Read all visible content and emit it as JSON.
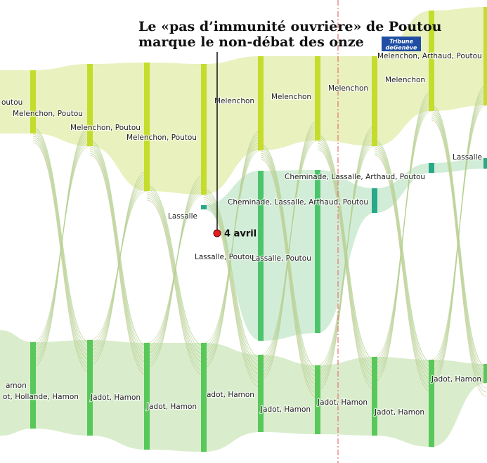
{
  "header": {
    "title_lines": [
      "Le «pas d’immunité ouvrière» de Poutou",
      "marque le non-débat des onze"
    ],
    "logo_lines": [
      "Tribune",
      "deGenève"
    ]
  },
  "annotation": {
    "label": "4 avril"
  },
  "labels": [
    "outou",
    "Melenchon, Poutou",
    "Melenchon, Poutou",
    "Melenchon, Poutou",
    "Melenchon",
    "Melenchon",
    "Melenchon",
    "Melenchon",
    "Melenchon, Arthaud, Poutou",
    "Lassalle",
    "Cheminade, Lassalle, Arthaud, Poutou",
    "Cheminade, Lassalle, Arthaud, Poutou",
    "Lassalle",
    "Lassalle, Poutou",
    "Lassalle, Poutou",
    "amon",
    "ot, Hollande, Hamon",
    "Jadot, Hamon",
    "Jadot, Hamon",
    "adot, Hamon",
    "Jadot, Hamon",
    "Jadot, Hamon",
    "Jadot, Hamon",
    "Jadot, Hamon"
  ]
}
